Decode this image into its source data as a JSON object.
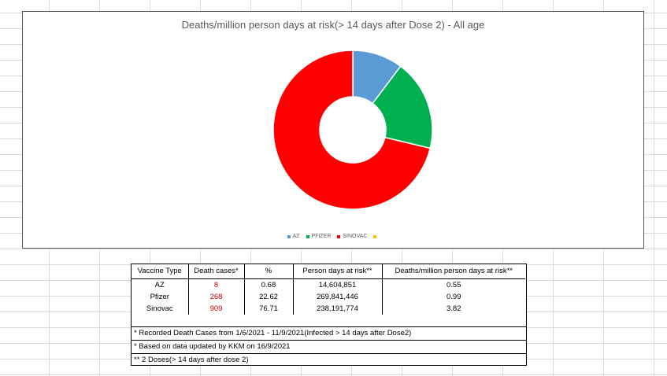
{
  "chart_data": {
    "type": "pie",
    "title": "Deaths/million person days at risk(> 14 days after Dose 2) - All age",
    "categories": [
      "AZ",
      "PFIZER",
      "SINOVAC",
      ""
    ],
    "values": [
      0.55,
      0.99,
      3.82,
      0
    ],
    "colors": [
      "#5b9bd5",
      "#00b050",
      "#ff0000",
      "#ffc000"
    ],
    "donut": true,
    "legend": "bottom"
  },
  "table": {
    "headers": [
      "Vaccine Type",
      "Death cases*",
      "%",
      "Person days at risk**",
      "Deaths/million person days at risk**"
    ],
    "rows": [
      [
        "AZ",
        "8",
        "0.68",
        "14,604,851",
        "0.55"
      ],
      [
        "Pfizer",
        "268",
        "22.62",
        "269,841,446",
        "0.99"
      ],
      [
        "Sinovac",
        "909",
        "76.71",
        "238,191,774",
        "3.82"
      ]
    ],
    "notes": [
      "* Recorded Death Cases from 1/6/2021 - 11/9/2021(Infected > 14 days after Dose2)",
      "* Based on data updated by KKM on 16/9/2021",
      "** 2 Doses(> 14 days after dose 2)"
    ]
  }
}
